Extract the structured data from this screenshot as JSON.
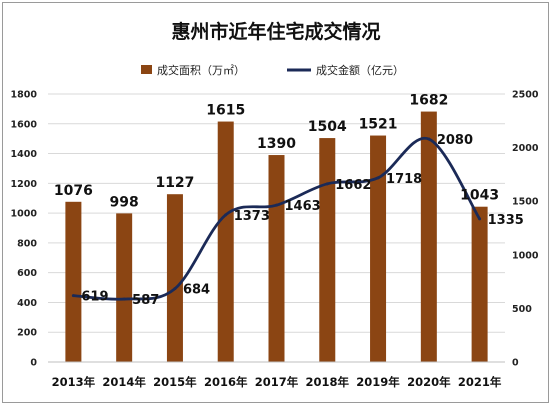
{
  "chart_data": {
    "type": "bar+line",
    "title": "惠州市近年住宅成交情况",
    "categories": [
      "2013年",
      "2014年",
      "2015年",
      "2016年",
      "2017年",
      "2018年",
      "2019年",
      "2020年",
      "2021年"
    ],
    "series": [
      {
        "name": "成交面积（万㎡）",
        "type": "bar",
        "axis": "left",
        "values": [
          1076,
          998,
          1127,
          1615,
          1390,
          1504,
          1521,
          1682,
          1043
        ]
      },
      {
        "name": "成交金额（亿元）",
        "type": "line",
        "axis": "right",
        "values": [
          619,
          587,
          684,
          1373,
          1463,
          1662,
          1718,
          2080,
          1335
        ]
      }
    ],
    "y_left": {
      "min": 0,
      "max": 1800,
      "ticks": [
        "0",
        "200",
        "400",
        "600",
        "800",
        "1000",
        "1200",
        "1400",
        "1600",
        "1800"
      ]
    },
    "y_right": {
      "min": 0,
      "max": 2500,
      "ticks": [
        "0",
        "500",
        "1000",
        "1500",
        "2000",
        "2500"
      ]
    },
    "grid": true,
    "legend_position": "top",
    "colors": {
      "bar": "#8b4513",
      "line": "#1b2a57",
      "grid": "#d9d9d9"
    }
  }
}
